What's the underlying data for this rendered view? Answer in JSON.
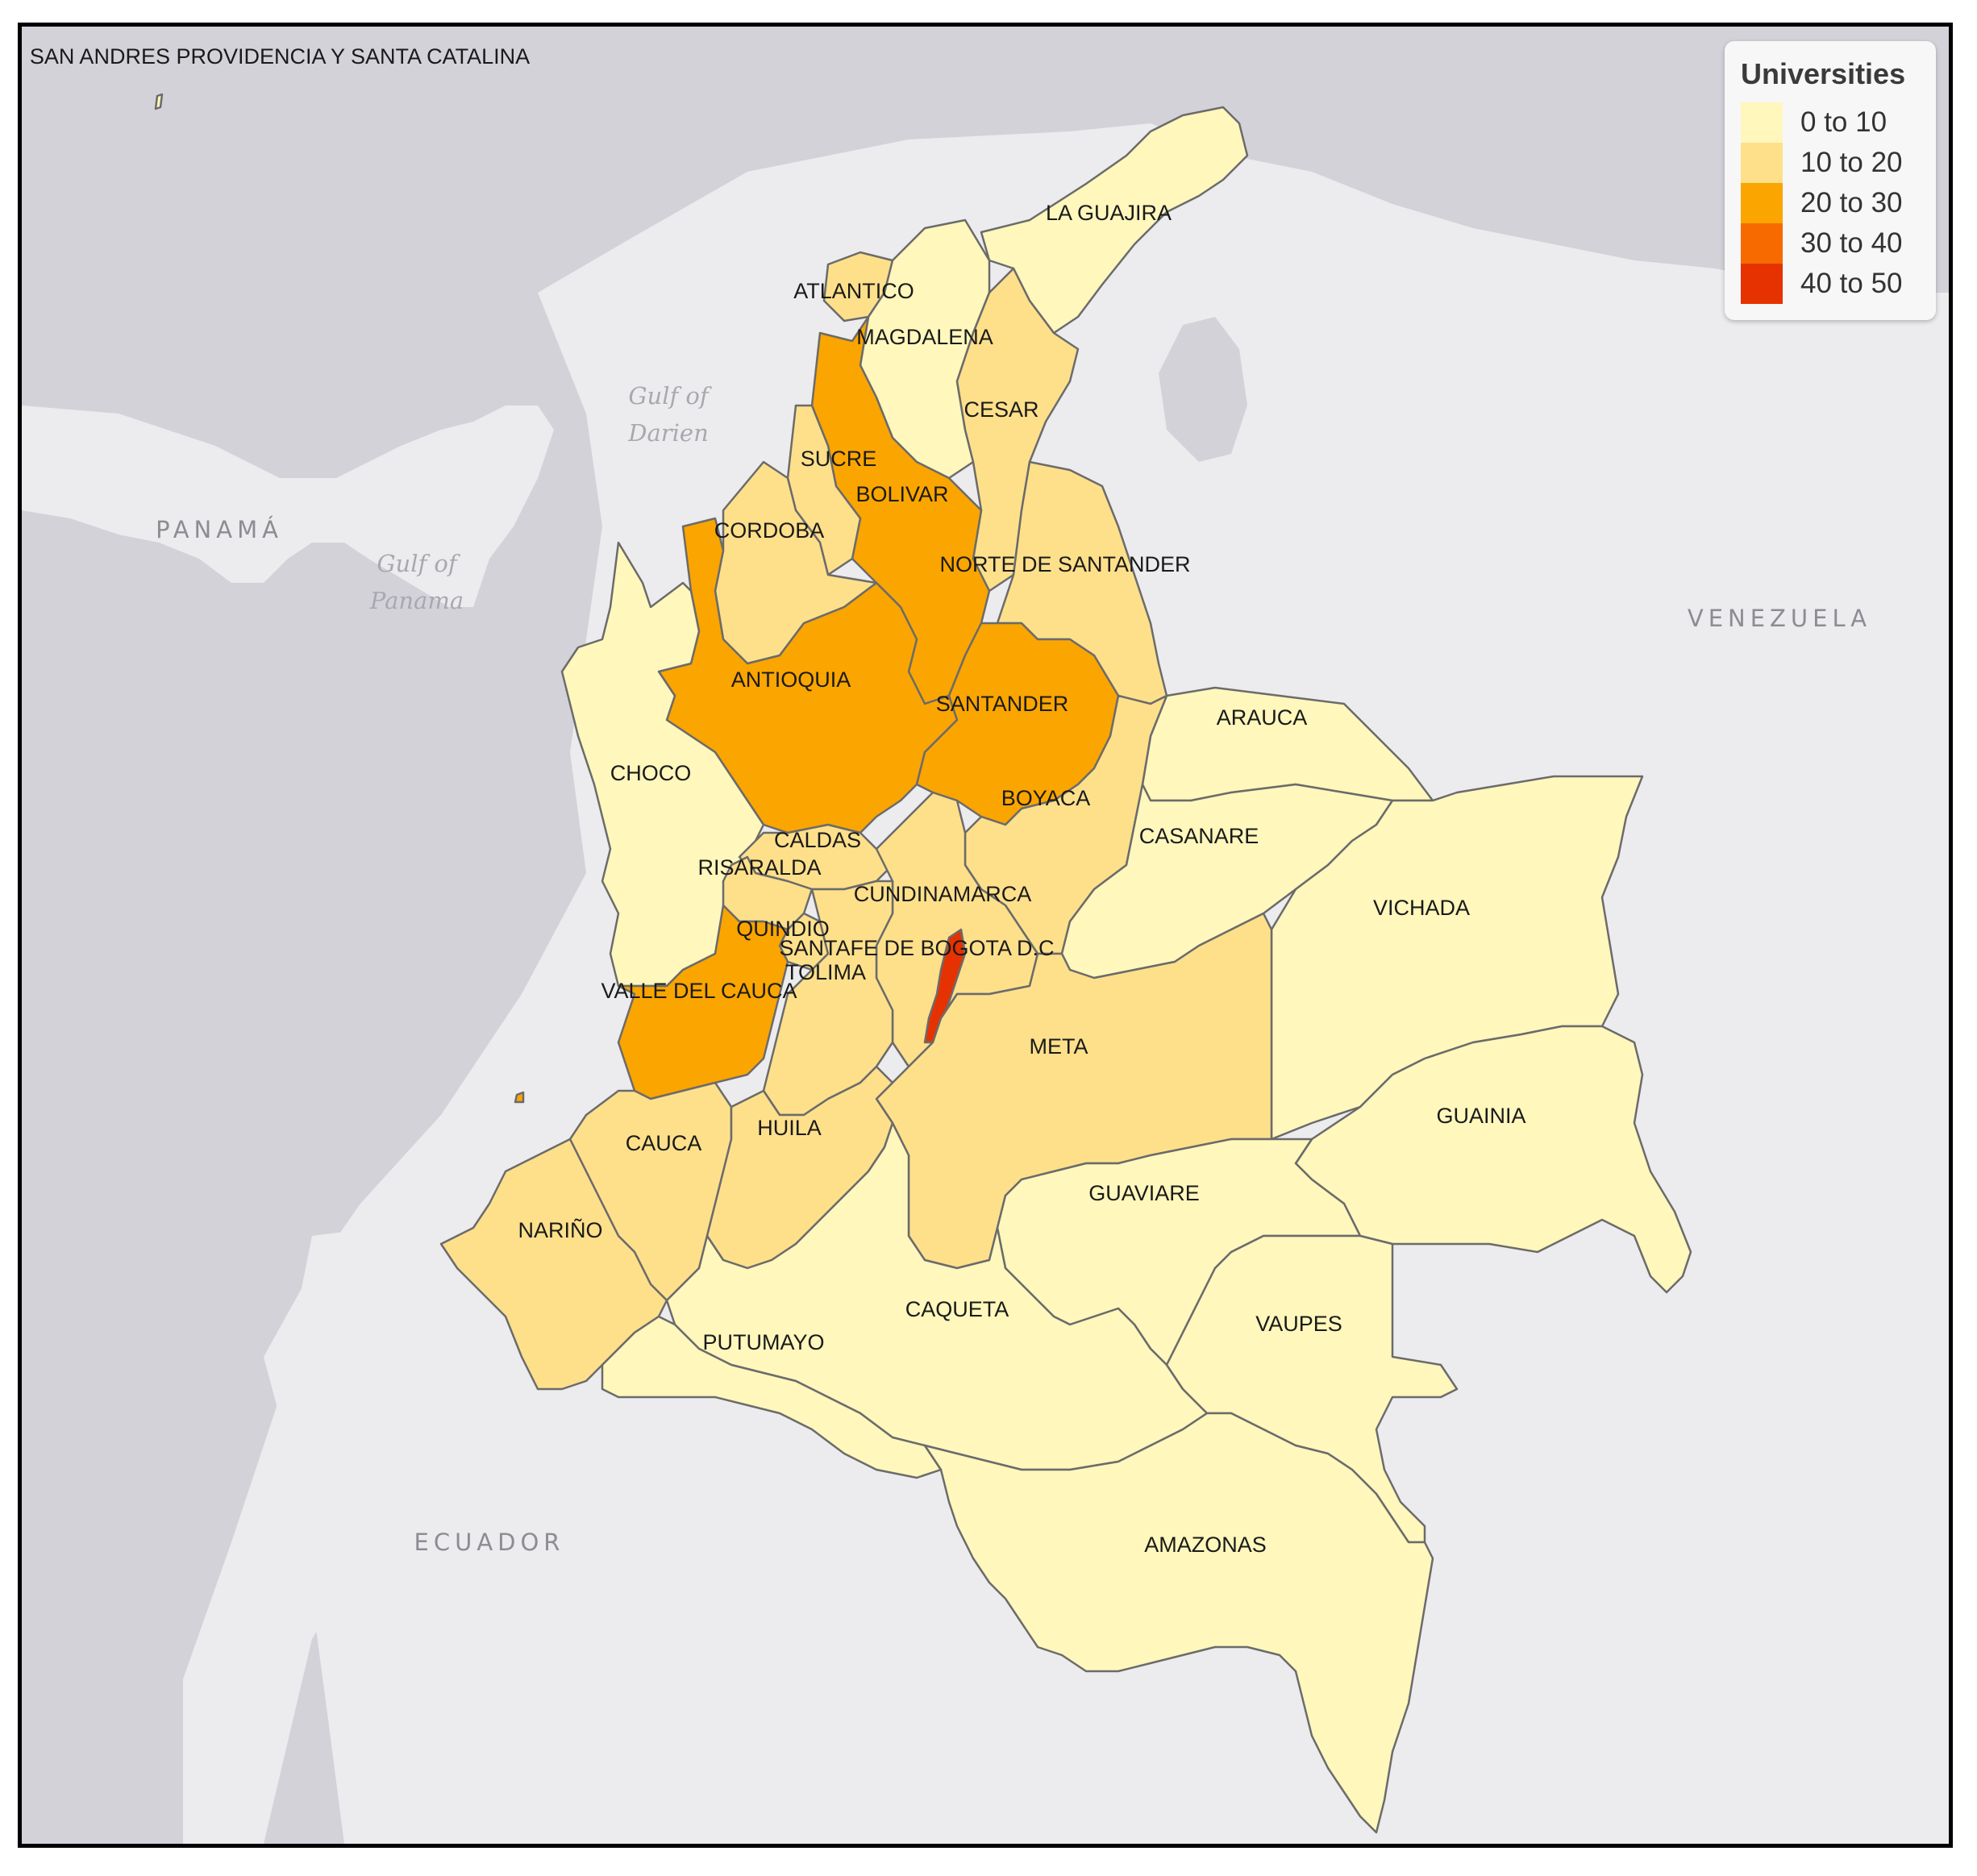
{
  "map": {
    "island_label": "SAN ANDRES PROVIDENCIA Y SANTA CATALINA",
    "countries": [
      "PANAMÁ",
      "VENEZUELA",
      "ECUADOR"
    ],
    "water_labels": [
      [
        "Gulf of",
        "Darien"
      ],
      [
        "Gulf of",
        "Panama"
      ]
    ],
    "departments": [
      {
        "name": "LA GUAJIRA",
        "bin": 0
      },
      {
        "name": "ATLANTICO",
        "bin": 1
      },
      {
        "name": "MAGDALENA",
        "bin": 0
      },
      {
        "name": "CESAR",
        "bin": 1
      },
      {
        "name": "BOLIVAR",
        "bin": 2
      },
      {
        "name": "SUCRE",
        "bin": 1
      },
      {
        "name": "CORDOBA",
        "bin": 1
      },
      {
        "name": "NORTE DE SANTANDER",
        "bin": 1
      },
      {
        "name": "ANTIOQUIA",
        "bin": 2
      },
      {
        "name": "SANTANDER",
        "bin": 2
      },
      {
        "name": "CHOCO",
        "bin": 0
      },
      {
        "name": "ARAUCA",
        "bin": 0
      },
      {
        "name": "BOYACA",
        "bin": 1
      },
      {
        "name": "CASANARE",
        "bin": 0
      },
      {
        "name": "CALDAS",
        "bin": 1
      },
      {
        "name": "RISARALDA",
        "bin": 1
      },
      {
        "name": "CUNDINAMARCA",
        "bin": 1
      },
      {
        "name": "VICHADA",
        "bin": 0
      },
      {
        "name": "QUINDIO",
        "bin": 1
      },
      {
        "name": "SANTAFE DE BOGOTA D.C",
        "bin": 4
      },
      {
        "name": "TOLIMA",
        "bin": 1
      },
      {
        "name": "VALLE DEL CAUCA",
        "bin": 2
      },
      {
        "name": "META",
        "bin": 1
      },
      {
        "name": "GUAINIA",
        "bin": 0
      },
      {
        "name": "CAUCA",
        "bin": 1
      },
      {
        "name": "HUILA",
        "bin": 1
      },
      {
        "name": "GUAVIARE",
        "bin": 0
      },
      {
        "name": "NARIÑO",
        "bin": 1
      },
      {
        "name": "CAQUETA",
        "bin": 0
      },
      {
        "name": "VAUPES",
        "bin": 0
      },
      {
        "name": "PUTUMAYO",
        "bin": 0
      },
      {
        "name": "AMAZONAS",
        "bin": 0
      },
      {
        "name": "SAN ANDRES PROVIDENCIA Y SANTA CATALINA",
        "bin": 0
      }
    ]
  },
  "legend": {
    "title": "Universities",
    "items": [
      {
        "label": "0 to 10",
        "color": "#fff7bc"
      },
      {
        "label": "10 to 20",
        "color": "#fee08b"
      },
      {
        "label": "20 to 30",
        "color": "#fba500"
      },
      {
        "label": "30 to 40",
        "color": "#f76a00"
      },
      {
        "label": "40 to 50",
        "color": "#e63200"
      }
    ]
  },
  "colors": {
    "ocean": "#d4d2d9",
    "land": "#ececee",
    "border": "#6b6b6b"
  }
}
